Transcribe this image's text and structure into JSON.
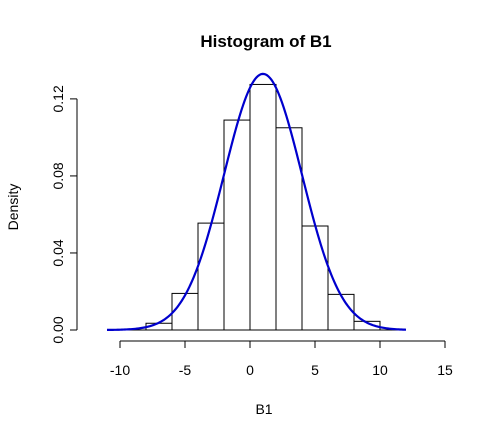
{
  "chart_data": {
    "type": "bar",
    "title": "Histogram of B1",
    "xlabel": "B1",
    "ylabel": "Density",
    "bins": [
      {
        "x0": -10,
        "x1": -8,
        "density": 0.0
      },
      {
        "x0": -8,
        "x1": -6,
        "density": 0.0035
      },
      {
        "x0": -6,
        "x1": -4,
        "density": 0.019
      },
      {
        "x0": -4,
        "x1": -2,
        "density": 0.0555
      },
      {
        "x0": -2,
        "x1": 0,
        "density": 0.109
      },
      {
        "x0": 0,
        "x1": 2,
        "density": 0.1275
      },
      {
        "x0": 2,
        "x1": 4,
        "density": 0.105
      },
      {
        "x0": 4,
        "x1": 6,
        "density": 0.054
      },
      {
        "x0": 6,
        "x1": 8,
        "density": 0.0185
      },
      {
        "x0": 8,
        "x1": 10,
        "density": 0.0045
      },
      {
        "x0": 10,
        "x1": 12,
        "density": 0.0
      }
    ],
    "density_curve": {
      "type": "normal",
      "mean": 1.0,
      "sd": 3.0,
      "x_range": [
        -11,
        12
      ],
      "color": "#0000cd"
    },
    "xlim": [
      -12,
      15
    ],
    "ylim": [
      0,
      0.135
    ],
    "xticks": [
      -10,
      -5,
      0,
      5,
      10,
      15
    ],
    "xtick_labels": [
      "-10",
      "-5",
      "0",
      "5",
      "10",
      "15"
    ],
    "yticks": [
      0.0,
      0.04,
      0.08,
      0.12
    ],
    "ytick_labels": [
      "0.00",
      "0.04",
      "0.08",
      "0.12"
    ],
    "grid": false,
    "legend": "none"
  }
}
